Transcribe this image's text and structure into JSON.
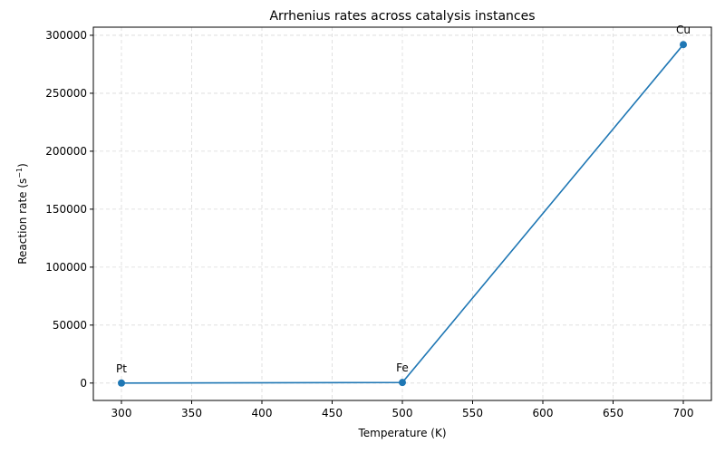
{
  "chart_data": {
    "type": "line",
    "title": "Arrhenius rates across catalysis instances",
    "xlabel": "Temperature (K)",
    "ylabel_main": "Reaction rate (s",
    "ylabel_sup": "−1",
    "ylabel_end": ")",
    "xlim": [
      280,
      720
    ],
    "ylim": [
      -15000,
      307000
    ],
    "xticks": [
      300,
      350,
      400,
      450,
      500,
      550,
      600,
      650,
      700
    ],
    "yticks": [
      0,
      50000,
      100000,
      150000,
      200000,
      250000,
      300000
    ],
    "grid": true,
    "series": [
      {
        "color": "#1f77b4",
        "points": [
          {
            "x": 300,
            "y": 10,
            "label": "Pt"
          },
          {
            "x": 500,
            "y": 500,
            "label": "Fe"
          },
          {
            "x": 700,
            "y": 292000,
            "label": "Cu"
          }
        ]
      }
    ]
  }
}
